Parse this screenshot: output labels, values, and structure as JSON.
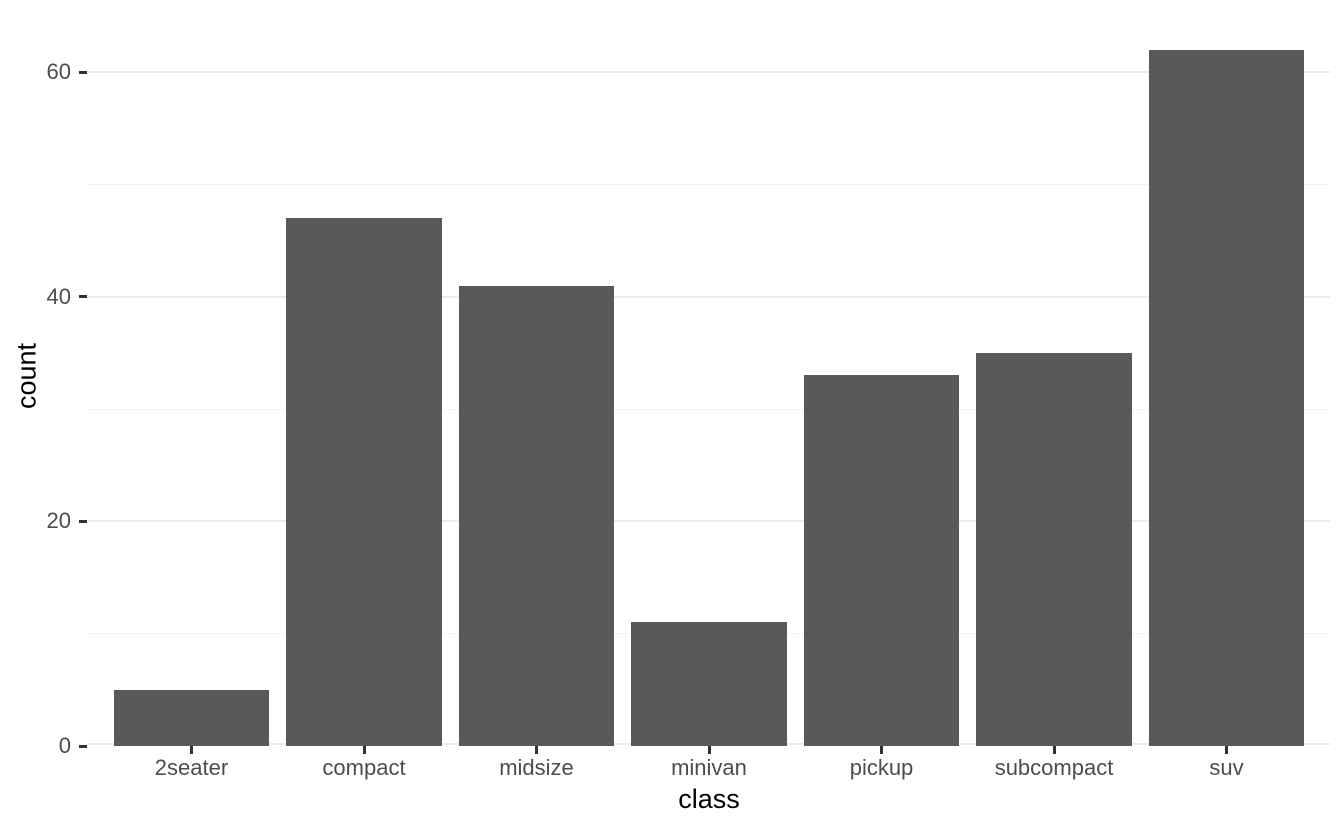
{
  "chart_data": {
    "type": "bar",
    "title": "",
    "xlabel": "class",
    "ylabel": "count",
    "categories": [
      "2seater",
      "compact",
      "midsize",
      "minivan",
      "pickup",
      "subcompact",
      "suv"
    ],
    "values": [
      5,
      47,
      41,
      11,
      33,
      35,
      62
    ],
    "ylim": [
      0,
      65.1
    ],
    "y_major_ticks": [
      0,
      20,
      40,
      60
    ],
    "y_minor_gridlines": [
      10,
      30,
      50
    ],
    "grid": "horizontal major and minor gridlines, no vertical gridlines",
    "legend_position": "none",
    "colors": {
      "bar_fill": "#595959",
      "background": "#ffffff",
      "grid_major": "#ebebeb",
      "grid_minor": "#f2f2f2",
      "axis_tick": "#333333",
      "tick_label": "#4d4d4d",
      "axis_title": "#000000"
    }
  }
}
